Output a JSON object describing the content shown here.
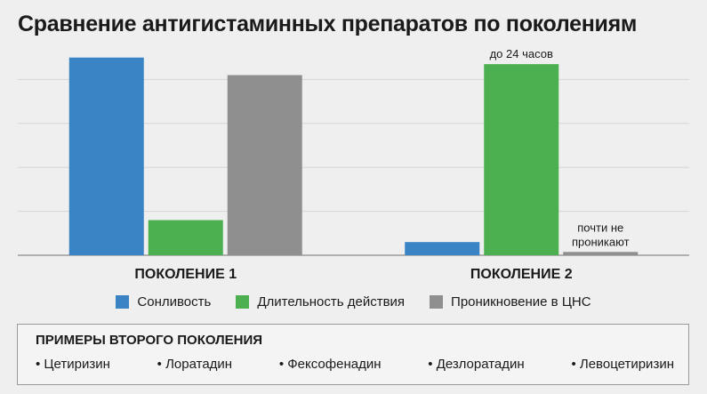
{
  "title": "Сравнение антигистаминных препаратов по поколениям",
  "chart_data": {
    "type": "bar",
    "categories": [
      "ПОКОЛЕНИЕ 1",
      "ПОКОЛЕНИЕ 2"
    ],
    "series": [
      {
        "name": "Сонливость",
        "color": "#3a84c6",
        "values": [
          9,
          0.6
        ]
      },
      {
        "name": "Длительность действия",
        "color": "#4caf50",
        "values": [
          1.6,
          8.7
        ]
      },
      {
        "name": "Проникновение в ЦНС",
        "color": "#8f8f8f",
        "values": [
          8.2,
          0.15
        ]
      }
    ],
    "annotations": [
      {
        "series": 1,
        "category": 1,
        "text": "до 24 часов"
      },
      {
        "series": 2,
        "category": 1,
        "text": "почти не проникают"
      }
    ],
    "ylim": [
      0,
      10
    ],
    "grid": true,
    "legend": "bottom"
  },
  "examples": {
    "title": "ПРИМЕРЫ ВТОРОГО ПОКОЛЕНИЯ",
    "items": [
      "Цетиризин",
      "Лоратадин",
      "Фексофенадин",
      "Дезлоратадин",
      "Левоцетиризин"
    ]
  }
}
